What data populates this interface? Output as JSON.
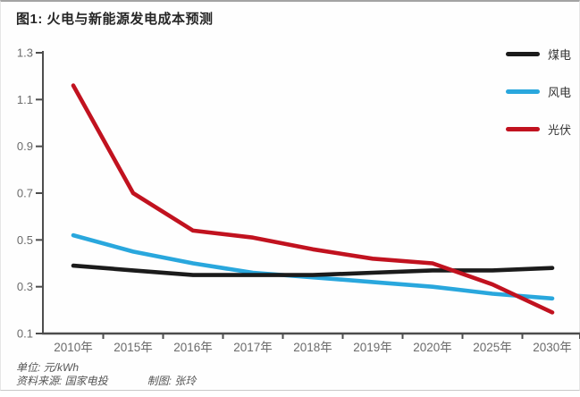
{
  "page": {
    "title": "图1: 火电与新能源发电成本预测",
    "footer": {
      "unit": "单位: 元/kWh",
      "source": "资料来源: 国家电投",
      "author": "制图: 张玲"
    }
  },
  "chart_data": {
    "type": "line",
    "title": "图1: 火电与新能源发电成本预测",
    "unit": "元/kWh",
    "categories": [
      "2010年",
      "2015年",
      "2016年",
      "2017年",
      "2018年",
      "2019年",
      "2020年",
      "2025年",
      "2030年"
    ],
    "series": [
      {
        "key": "coal",
        "name": "煤电",
        "color": "#1b1b1b",
        "values": [
          0.39,
          0.37,
          0.35,
          0.35,
          0.35,
          0.36,
          0.37,
          0.37,
          0.38
        ]
      },
      {
        "key": "wind",
        "name": "风电",
        "color": "#29a7dd",
        "values": [
          0.52,
          0.45,
          0.4,
          0.36,
          0.34,
          0.32,
          0.3,
          0.27,
          0.25
        ]
      },
      {
        "key": "solar",
        "name": "光伏",
        "color": "#c1121f",
        "values": [
          1.16,
          0.7,
          0.54,
          0.51,
          0.46,
          0.42,
          0.4,
          0.31,
          0.19
        ]
      }
    ],
    "draw_order": [
      "wind",
      "coal",
      "solar"
    ],
    "ylim": [
      0.1,
      1.3
    ],
    "yticks": [
      0.1,
      0.3,
      0.5,
      0.7,
      0.9,
      1.1,
      1.3
    ],
    "xlabel": "",
    "ylabel": "",
    "grid": false,
    "legend_position": "top-right",
    "axis_color": "#4d4d4d",
    "tick_label_color": "#6b6b6b"
  }
}
